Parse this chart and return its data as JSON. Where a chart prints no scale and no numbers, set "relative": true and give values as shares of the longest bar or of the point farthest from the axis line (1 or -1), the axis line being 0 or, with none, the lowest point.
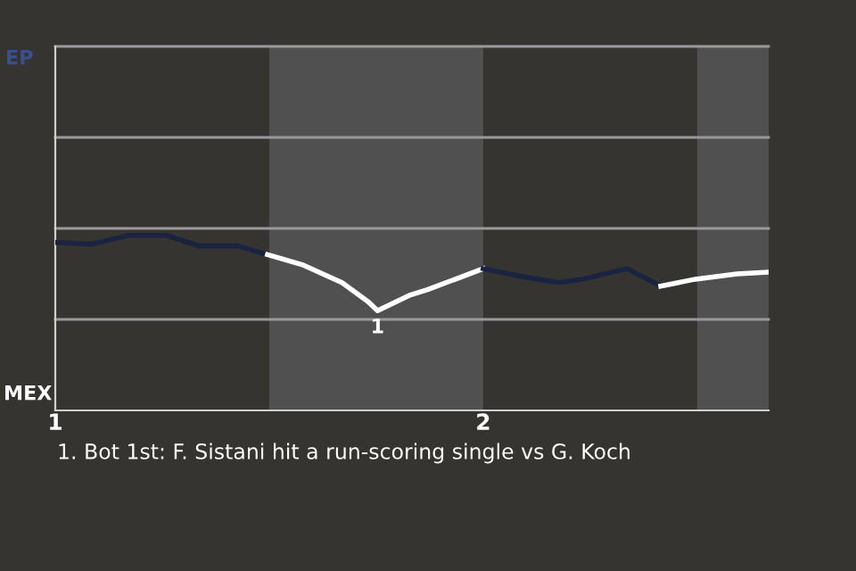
{
  "chart_data": {
    "type": "line",
    "relative": true,
    "series": [
      {
        "color": "#1a2440",
        "x": [
          1.0,
          1.086,
          1.17,
          1.26,
          1.336,
          1.426,
          1.496
        ],
        "values": [
          0.96,
          0.95,
          1.0,
          1.0,
          0.94,
          0.94,
          0.89
        ]
      },
      {
        "color": "#ffffff",
        "x": [
          1.496,
          1.58,
          1.67,
          1.732,
          1.753,
          1.83,
          1.87,
          2.0
        ],
        "values": [
          0.89,
          0.83,
          0.73,
          0.62,
          0.57,
          0.66,
          0.69,
          0.81
        ]
      },
      {
        "color": "#1a2440",
        "x": [
          2.0,
          2.08,
          2.176,
          2.232,
          2.336,
          2.415
        ],
        "values": [
          0.81,
          0.77,
          0.73,
          0.75,
          0.81,
          0.71
        ]
      },
      {
        "color": "#ffffff",
        "x": [
          2.415,
          2.496,
          2.593,
          2.667
        ],
        "values": [
          0.71,
          0.75,
          0.78,
          0.79
        ]
      }
    ],
    "xlim": [
      1,
      2.667
    ],
    "xticks": [
      1,
      2
    ],
    "marker": "none",
    "line_style": "solid",
    "ref_lines": [
      {
        "axis": "y",
        "value": 0.52,
        "color": "#9a9a9a"
      },
      {
        "axis": "y",
        "value": 1.04,
        "color": "#9a9a9a"
      },
      {
        "axis": "y",
        "value": 1.56,
        "color": "#9a9a9a"
      },
      {
        "axis": "y",
        "value": 2.08,
        "color": "#9a9a9a"
      }
    ],
    "bands": [
      {
        "axis": "x",
        "from": 1.5,
        "to": 2.0,
        "color": "#505050"
      },
      {
        "axis": "x",
        "from": 2.5,
        "to": 2.667,
        "color": "#505050"
      }
    ],
    "annotations": [
      {
        "text": "1",
        "x": 1.753,
        "y": 0.57
      },
      "EP",
      "MEX",
      "1. Bot 1st: F. Sistani hit a run-scoring single vs G. Koch"
    ]
  }
}
